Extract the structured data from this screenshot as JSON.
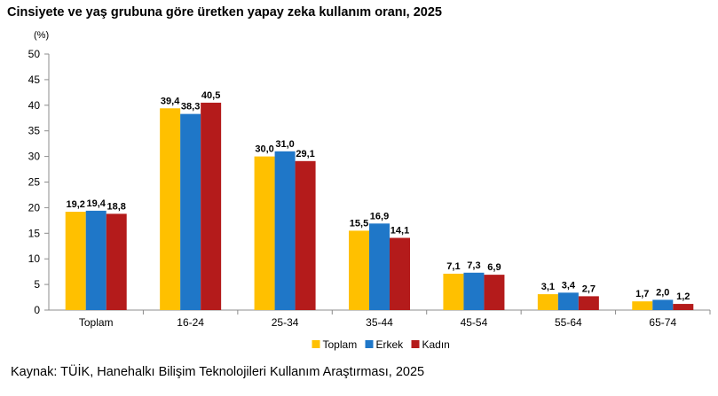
{
  "title": "Cinsiyete ve yaş grubuna göre üretken yapay zeka kullanım oranı, 2025",
  "source": "Kaynak: TÜİK, Hanehalkı Bilişim Teknolojileri Kullanım Araştırması, 2025",
  "chart_data": {
    "type": "bar",
    "unit_label": "(%)",
    "categories": [
      "Toplam",
      "16-24",
      "25-34",
      "35-44",
      "45-54",
      "55-64",
      "65-74"
    ],
    "series": [
      {
        "name": "Toplam",
        "color": "#FFC000",
        "values": [
          19.2,
          39.4,
          30.0,
          15.5,
          7.1,
          3.1,
          1.7
        ],
        "labels": [
          "19,2",
          "39,4",
          "30,0",
          "15,5",
          "7,1",
          "3,1",
          "1,7"
        ]
      },
      {
        "name": "Erkek",
        "color": "#1F77C8",
        "values": [
          19.4,
          38.3,
          31.0,
          16.9,
          7.3,
          3.4,
          2.0
        ],
        "labels": [
          "19,4",
          "38,3",
          "31,0",
          "16,9",
          "7,3",
          "3,4",
          "2,0"
        ]
      },
      {
        "name": "Kadın",
        "color": "#B41B1B",
        "values": [
          18.8,
          40.5,
          29.1,
          14.1,
          6.9,
          2.7,
          1.2
        ],
        "labels": [
          "18,8",
          "40,5",
          "29,1",
          "14,1",
          "6,9",
          "2,7",
          "1,2"
        ]
      }
    ],
    "ylim": [
      0,
      50
    ],
    "yticks": [
      0,
      5,
      10,
      15,
      20,
      25,
      30,
      35,
      40,
      45,
      50
    ],
    "legend_position": "bottom-center",
    "grid": false
  }
}
